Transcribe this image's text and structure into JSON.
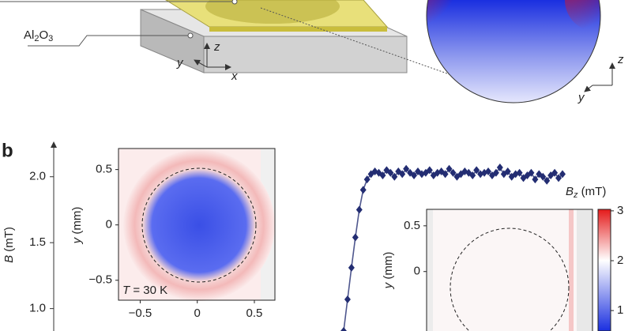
{
  "figure_a": {
    "substrate_label": [
      "Al",
      "2",
      "O",
      "3"
    ],
    "axis_z": "z",
    "axis_y": "y",
    "axis_x": "x",
    "field_axis_z": "z",
    "field_axis_y": "y"
  },
  "panel_label": "b",
  "chart_data": {
    "type": "line",
    "y_label": [
      "B",
      " (mT)"
    ],
    "ylim": [
      0.83,
      2.25
    ],
    "yticks": [
      {
        "value": 1.0,
        "label": "1.0"
      },
      {
        "value": 1.5,
        "label": "1.5"
      },
      {
        "value": 2.0,
        "label": "2.0"
      }
    ],
    "color": "#232d72",
    "values": [
      0.83,
      1.07,
      1.31,
      1.54,
      1.75,
      1.9,
      1.98,
      2.02,
      2.04,
      2.03,
      2.01,
      2.05,
      2.03,
      2.0,
      2.04,
      2.02,
      2.06,
      2.03,
      2.01,
      2.04,
      2.02,
      2.03,
      2.05,
      2.01,
      2.03,
      2.04,
      2.02,
      2.06,
      2.03,
      2.0,
      2.02,
      2.04,
      2.03,
      2.01,
      2.05,
      2.02,
      2.03,
      2.04,
      2.01,
      2.03,
      2.07,
      2.02,
      2.04,
      2.0,
      2.02,
      2.03,
      1.99,
      2.01,
      2.03,
      1.98,
      2.02,
      2.0,
      1.97,
      2.01,
      2.03,
      1.99,
      2.02
    ]
  },
  "inset_1": {
    "y_label": [
      "y",
      " (mm)"
    ],
    "xlim": [
      -0.69,
      0.68
    ],
    "ylim": [
      -0.68,
      0.69
    ],
    "xticks": [
      {
        "value": -0.5,
        "label": "−0.5"
      },
      0,
      0.5
    ],
    "yticks": [
      {
        "value": -0.5,
        "label": "−0.5"
      },
      0,
      0.5
    ],
    "annotation": [
      "T",
      " = 30 K"
    ]
  },
  "inset_2": {
    "y_label": [
      "y",
      " (mm)"
    ],
    "ylim": [
      -0.65,
      0.68
    ],
    "yticks": [
      0,
      0.5
    ]
  },
  "colorbar": {
    "title": [
      "B",
      "z",
      " (mT)"
    ],
    "lim": [
      0.59,
      3.03
    ],
    "ticks": [
      1,
      2,
      3
    ]
  }
}
